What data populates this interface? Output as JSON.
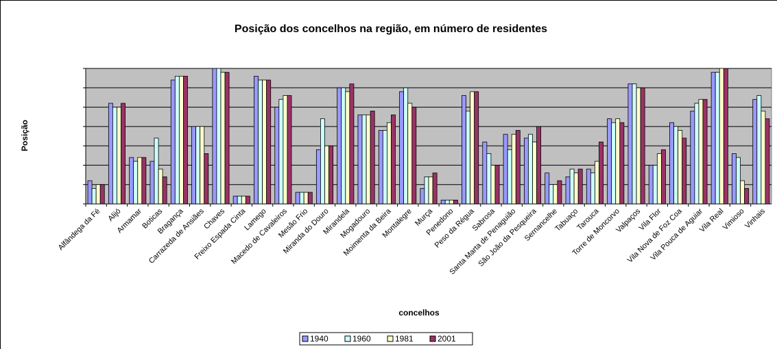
{
  "chart_data": {
    "type": "bar",
    "title": "Posição dos concelhos na região, em número de residentes",
    "x_label": "concelhos",
    "y_label": "Posição",
    "categories": [
      "Alfândega da Fé",
      "Alijó",
      "Armamar",
      "Boticas",
      "Bragança",
      "Carrazeda de Ansiães",
      "Chaves",
      "Freixo Espada Cinta",
      "Lamego",
      "Macedo de Cavaleiros",
      "Mesão Frio",
      "Miranda do Douro",
      "Mirandela",
      "Mogadouro",
      "Moimenta da Beira",
      "Montalegre",
      "Murça",
      "Penedono",
      "Peso da Régua",
      "Sabrosa",
      "Santa Marta de Penaguião",
      "São João da Pesqueira",
      "Sernancelhe",
      "Tabuaço",
      "Tarouca",
      "Torre de Moncorvo",
      "Valpaços",
      "Vila Flor",
      "Vila Nova de Foz Coa",
      "Vila Pouca de Aguiar",
      "Vila Real",
      "Vimioso",
      "Vinhais"
    ],
    "series": [
      {
        "name": "1940",
        "color": "#9999ff",
        "values": [
          6,
          26,
          12,
          11,
          32,
          20,
          35,
          2,
          33,
          25,
          3,
          14,
          30,
          23,
          19,
          29,
          4,
          1,
          28,
          16,
          18,
          17,
          8,
          7,
          9,
          22,
          31,
          10,
          21,
          24,
          34,
          13,
          27
        ]
      },
      {
        "name": "1960",
        "color": "#ccffff",
        "values": [
          4,
          25,
          11,
          17,
          33,
          20,
          35,
          2,
          32,
          27,
          3,
          22,
          30,
          23,
          19,
          30,
          7,
          1,
          24,
          13,
          14,
          18,
          5,
          9,
          8,
          21,
          31,
          10,
          20,
          26,
          34,
          12,
          28
        ]
      },
      {
        "name": "1981",
        "color": "#ffffcc",
        "values": [
          5,
          25,
          12,
          9,
          33,
          20,
          34,
          2,
          32,
          28,
          3,
          15,
          29,
          23,
          21,
          26,
          7,
          1,
          29,
          10,
          18,
          16,
          5,
          8,
          11,
          22,
          30,
          13,
          19,
          27,
          35,
          6,
          24
        ]
      },
      {
        "name": "2001",
        "color": "#993366",
        "values": [
          5,
          26,
          12,
          7,
          33,
          13,
          34,
          2,
          32,
          28,
          3,
          15,
          31,
          24,
          23,
          25,
          8,
          1,
          29,
          10,
          19,
          20,
          6,
          9,
          16,
          21,
          30,
          14,
          17,
          27,
          35,
          4,
          22
        ]
      }
    ],
    "ylim": [
      0,
      35
    ],
    "yticks": [
      0,
      5,
      10,
      15,
      20,
      25,
      30,
      35
    ],
    "grid": true,
    "plot_background": "#c0c0c0",
    "legend": "bottom"
  }
}
